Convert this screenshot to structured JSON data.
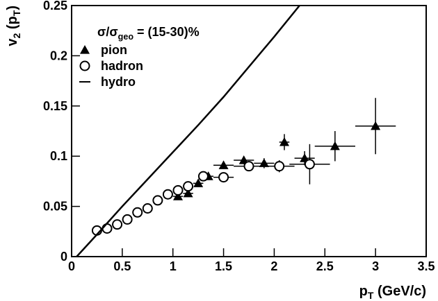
{
  "chart_data": {
    "type": "scatter",
    "xlabel": [
      "p",
      "T",
      " (GeV/c)"
    ],
    "ylabel": [
      "v",
      "2",
      " (p",
      "T",
      ")"
    ],
    "legend_title": [
      "σ/σ",
      "geo",
      " = (15-30)%"
    ],
    "xlim": [
      0,
      3.5
    ],
    "ylim": [
      0,
      0.25
    ],
    "xticks": [
      0,
      0.5,
      1,
      1.5,
      2,
      2.5,
      3,
      3.5
    ],
    "yticks": [
      0,
      0.05,
      0.1,
      0.15,
      0.2,
      0.25
    ],
    "legend": "upper left",
    "series": [
      {
        "name": "pion",
        "marker": "triangle",
        "color": "#000000",
        "x": [
          1.05,
          1.15,
          1.25,
          1.35,
          1.5,
          1.7,
          1.9,
          2.1,
          2.3,
          2.6,
          3.0
        ],
        "values": [
          0.06,
          0.063,
          0.073,
          0.08,
          0.091,
          0.096,
          0.093,
          0.114,
          0.098,
          0.11,
          0.13
        ],
        "y_err": [
          0.003,
          0.003,
          0.003,
          0.003,
          0.003,
          0.004,
          0.005,
          0.008,
          0.007,
          0.015,
          0.028
        ],
        "x_err": [
          0.05,
          0.05,
          0.05,
          0.05,
          0.1,
          0.1,
          0.1,
          0.05,
          0.1,
          0.2,
          0.2
        ]
      },
      {
        "name": "hadron",
        "marker": "circle",
        "color": "#000000",
        "x": [
          0.25,
          0.35,
          0.45,
          0.55,
          0.65,
          0.75,
          0.85,
          0.95,
          1.05,
          1.15,
          1.3,
          1.5,
          1.75,
          2.05,
          2.35
        ],
        "values": [
          0.026,
          0.028,
          0.032,
          0.037,
          0.044,
          0.048,
          0.056,
          0.062,
          0.066,
          0.07,
          0.08,
          0.079,
          0.09,
          0.09,
          0.092
        ],
        "y_err": [
          0.002,
          0.002,
          0.002,
          0.002,
          0.002,
          0.002,
          0.002,
          0.002,
          0.002,
          0.003,
          0.003,
          0.003,
          0.005,
          0.006,
          0.02
        ],
        "x_err": [
          0.05,
          0.05,
          0.05,
          0.05,
          0.05,
          0.05,
          0.05,
          0.05,
          0.05,
          0.05,
          0.05,
          0.1,
          0.15,
          0.15,
          0.2
        ]
      },
      {
        "name": "hydro",
        "marker": "line",
        "color": "#000000",
        "x": [
          0.05,
          0.25,
          0.5,
          0.75,
          1,
          1.25,
          1.5,
          1.75,
          2,
          2.25
        ],
        "values": [
          0,
          0.022,
          0.05,
          0.077,
          0.104,
          0.131,
          0.159,
          0.189,
          0.219,
          0.25
        ]
      }
    ]
  }
}
